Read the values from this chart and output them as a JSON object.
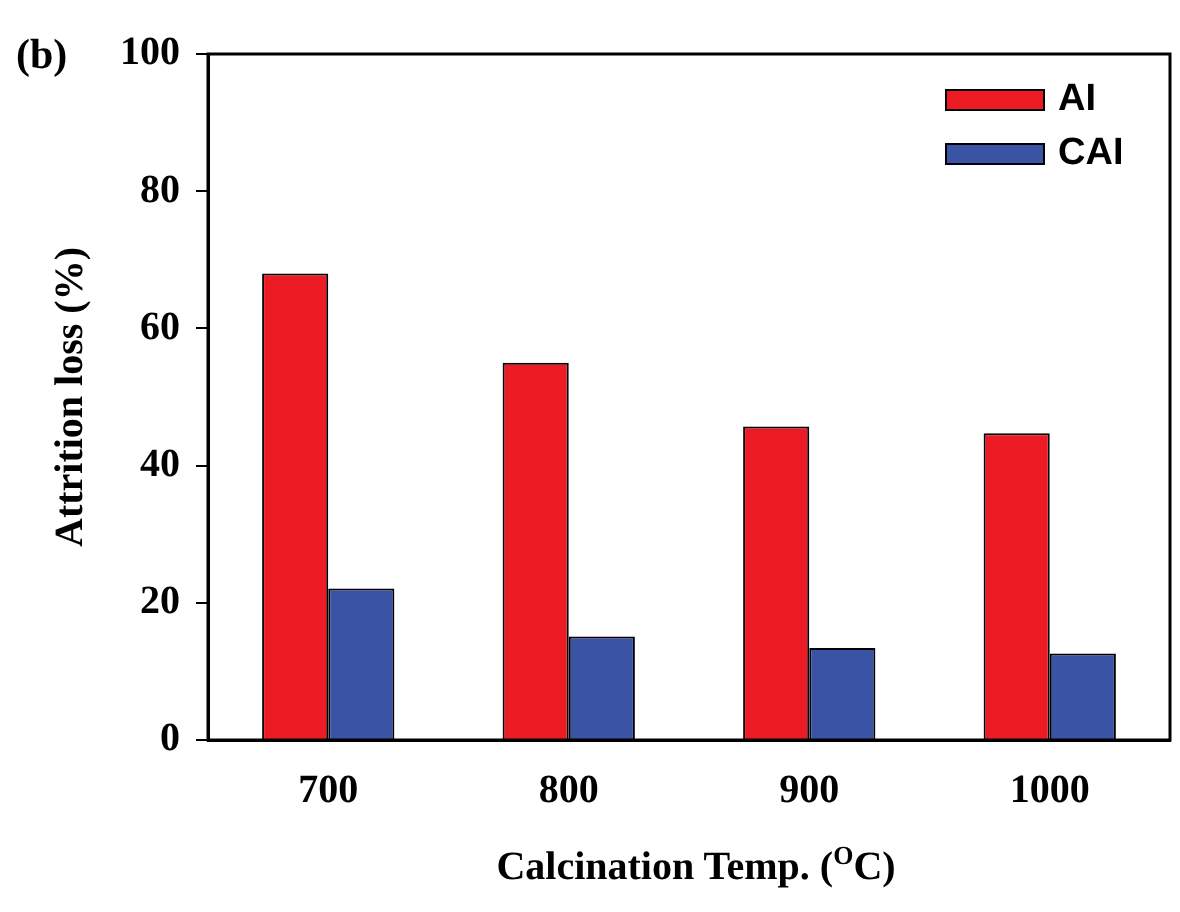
{
  "chart_data": {
    "type": "bar",
    "title": "(b)",
    "xlabel": "Calcination Temp. ($^{O}$C)",
    "ylabel": "Attrition loss (%)",
    "categories": [
      "700",
      "800",
      "900",
      "1000"
    ],
    "series": [
      {
        "name": "AI",
        "color": "#ed1c24",
        "values": [
          68.0,
          55.0,
          45.7,
          44.7
        ]
      },
      {
        "name": "CAI",
        "color": "#3a53a4",
        "values": [
          22.1,
          15.1,
          13.4,
          12.6
        ]
      }
    ],
    "ylim": [
      0,
      100
    ],
    "yticks": [
      0,
      20,
      40,
      60,
      80,
      100
    ],
    "grid": false,
    "legend": "top right"
  }
}
